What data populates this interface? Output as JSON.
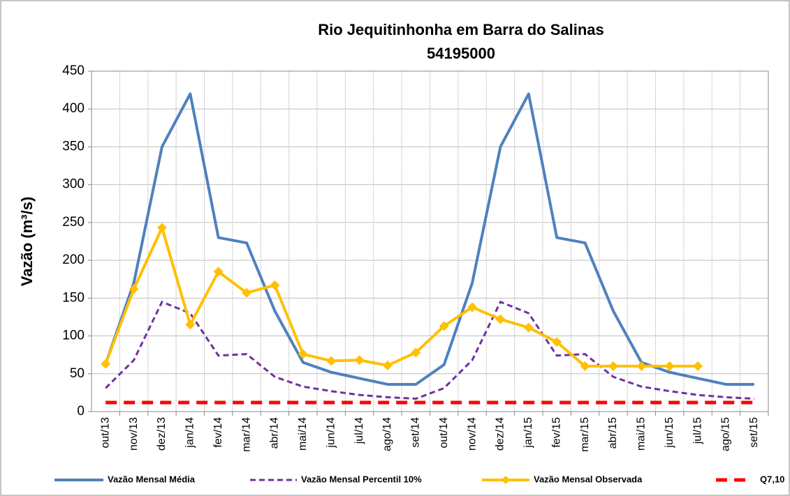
{
  "chart_data": {
    "type": "line",
    "title": "Rio Jequitinhonha em Barra do Salinas",
    "subtitle": "54195000",
    "ylabel": "Vazão (m³/s)",
    "categories": [
      "out/13",
      "nov/13",
      "dez/13",
      "jan/14",
      "fev/14",
      "mar/14",
      "abr/14",
      "mai/14",
      "jun/14",
      "jul/14",
      "ago/14",
      "set/14",
      "out/14",
      "nov/14",
      "dez/14",
      "jan/15",
      "fev/15",
      "mar/15",
      "abr/15",
      "mai/15",
      "jun/15",
      "jul/15",
      "ago/15",
      "set/15"
    ],
    "ylim": [
      0,
      450
    ],
    "yticks": [
      0,
      50,
      100,
      150,
      200,
      250,
      300,
      350,
      400,
      450
    ],
    "grid": true,
    "legend": "bottom",
    "series": [
      {
        "name": "Vazão Mensal Média",
        "color": "#4f81bd",
        "style": "solid",
        "values": [
          63,
          170,
          350,
          420,
          230,
          223,
          133,
          65,
          52,
          44,
          36,
          36,
          62,
          170,
          350,
          420,
          230,
          223,
          133,
          65,
          52,
          44,
          36,
          36
        ]
      },
      {
        "name": "Vazão Mensal Percentil 10%",
        "color": "#7030a0",
        "style": "dashed",
        "values": [
          31,
          68,
          145,
          130,
          74,
          76,
          46,
          33,
          27,
          22,
          19,
          17,
          31,
          68,
          145,
          130,
          74,
          76,
          46,
          33,
          27,
          22,
          19,
          17
        ]
      },
      {
        "name": "Vazão Mensal Observada",
        "color": "#ffc000",
        "style": "solid",
        "marker": "diamond",
        "values": [
          63,
          162,
          243,
          115,
          185,
          157,
          167,
          76,
          67,
          68,
          61,
          78,
          113,
          138,
          122,
          111,
          92,
          60,
          60,
          60,
          60,
          60,
          null,
          null
        ]
      },
      {
        "name": "Q7,10",
        "color": "#ff0000",
        "style": "thick-dashed",
        "values": [
          12,
          12,
          12,
          12,
          12,
          12,
          12,
          12,
          12,
          12,
          12,
          12,
          12,
          12,
          12,
          12,
          12,
          12,
          12,
          12,
          12,
          12,
          12,
          12
        ]
      }
    ]
  }
}
